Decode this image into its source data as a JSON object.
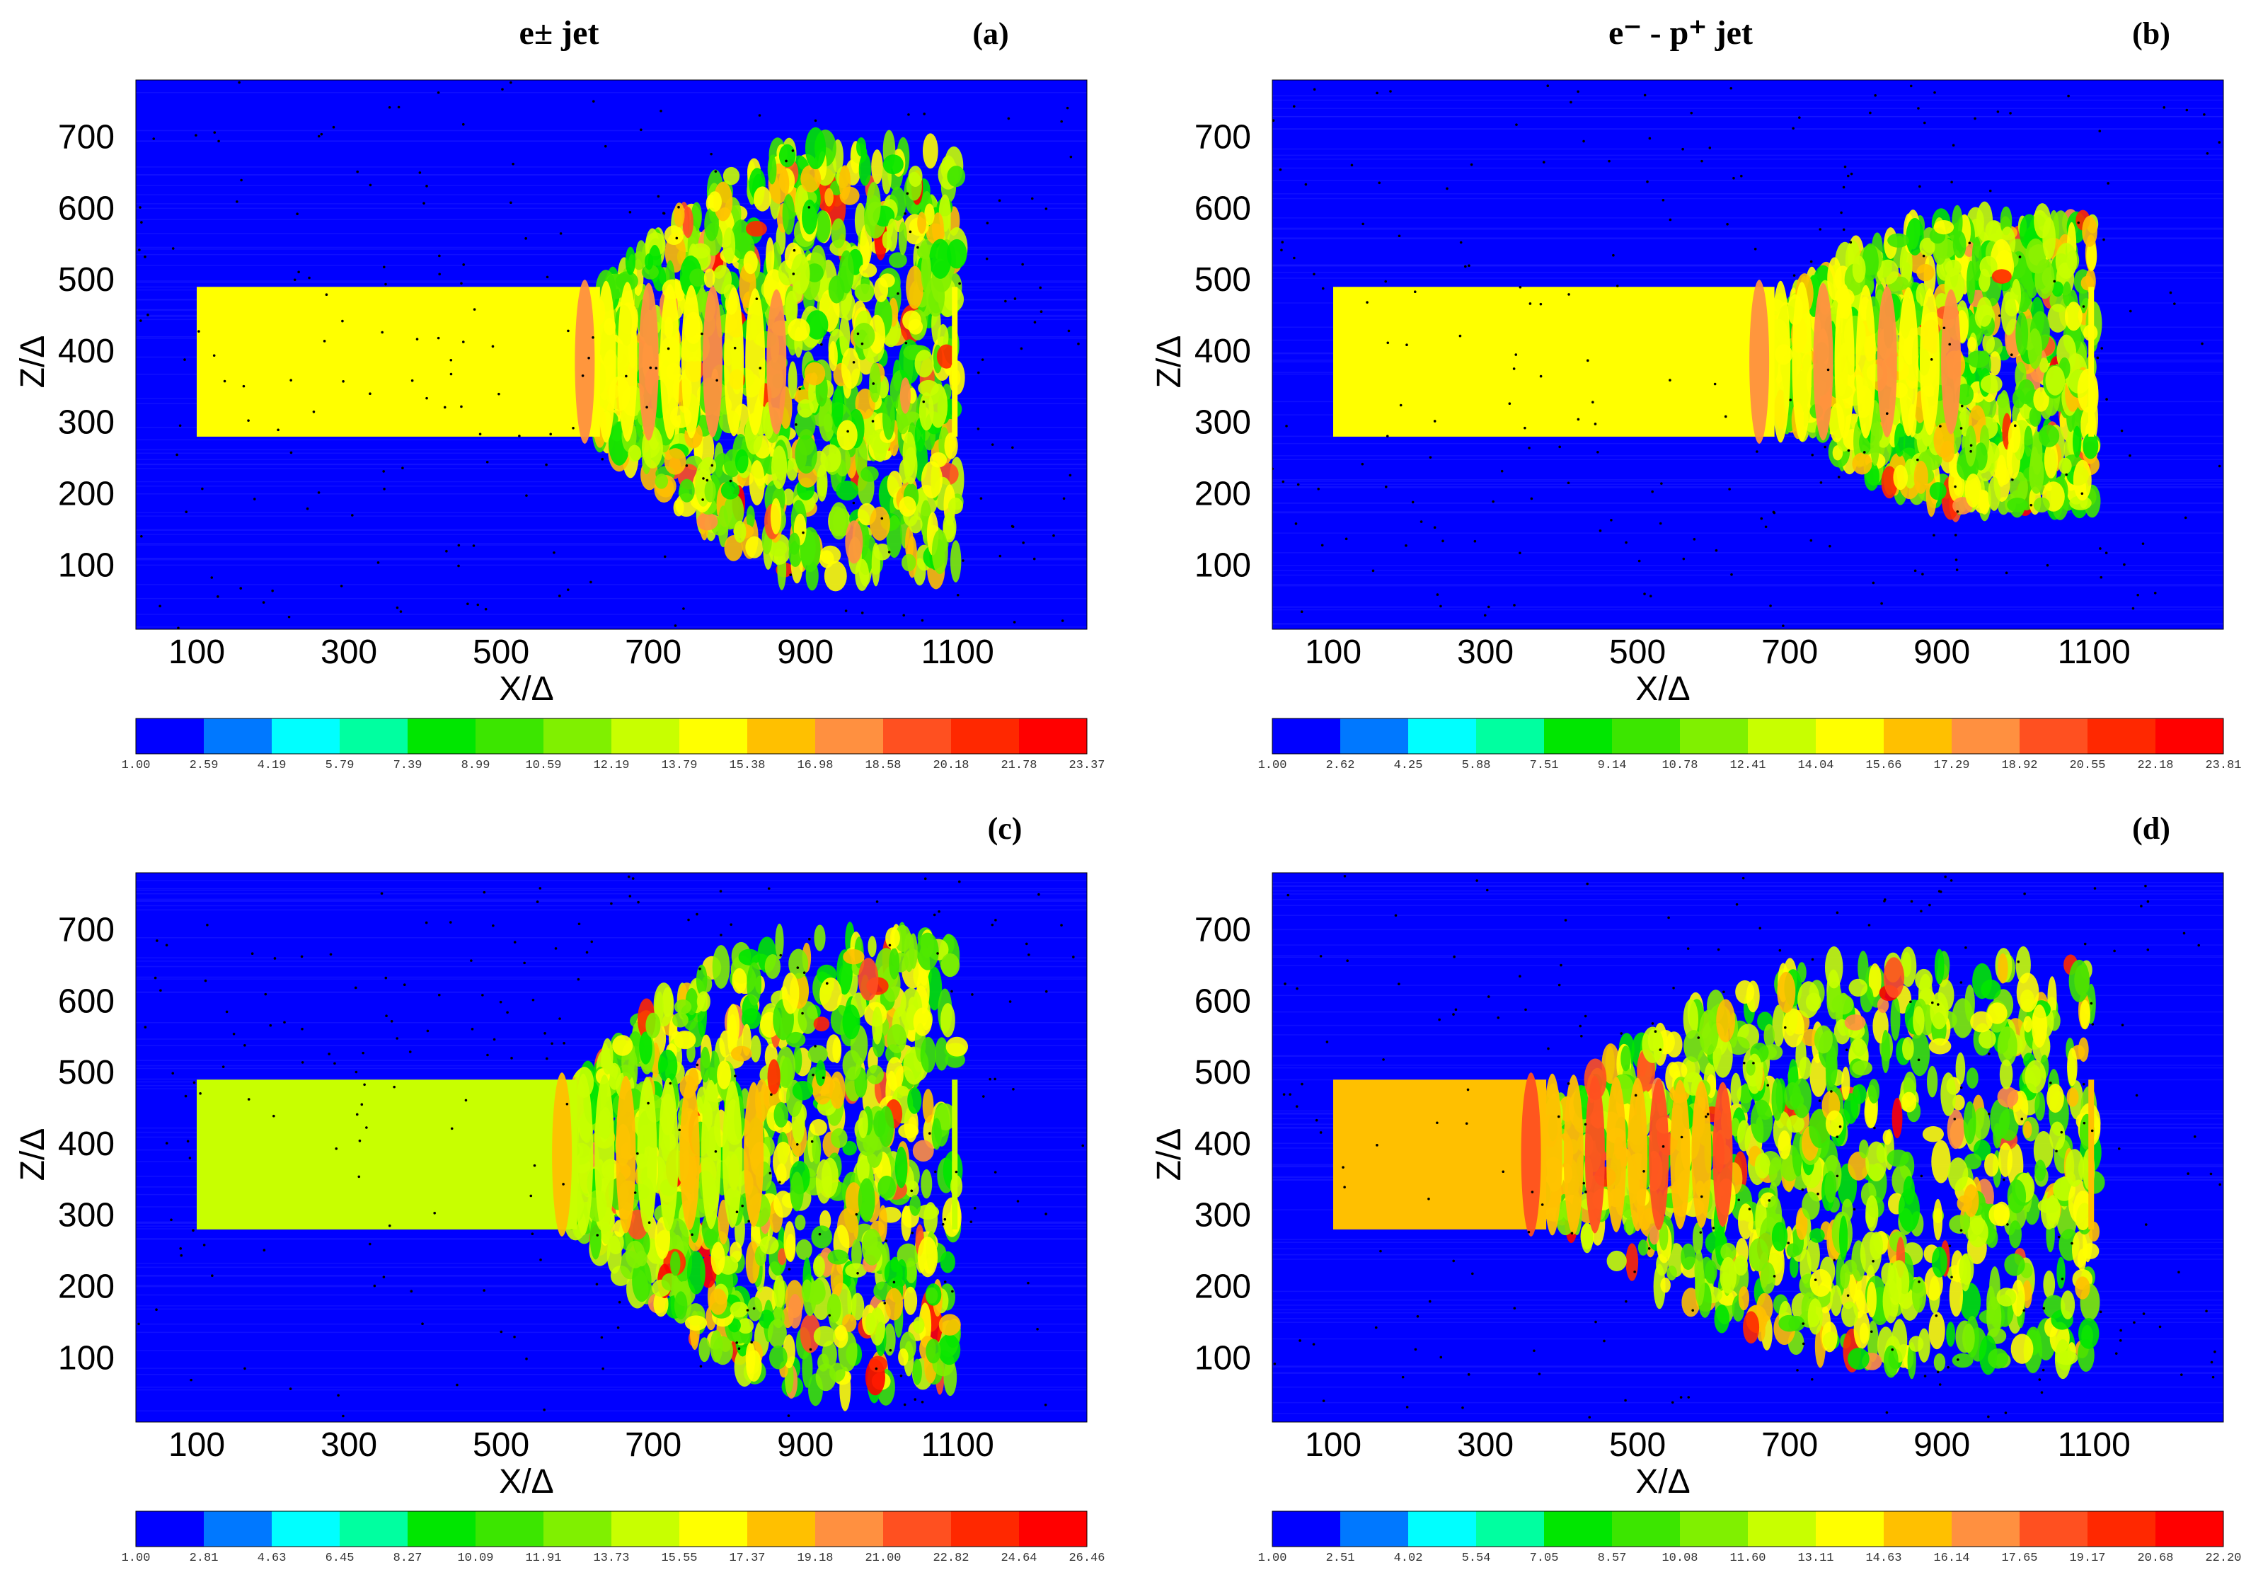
{
  "figure": {
    "colors": {
      "background": "#0000ff",
      "palette": [
        "#0000ff",
        "#0078ff",
        "#00ffff",
        "#00ffa0",
        "#00e600",
        "#3ce600",
        "#80f000",
        "#c8ff00",
        "#ffff00",
        "#ffc000",
        "#ff9040",
        "#ff5020",
        "#ff2800",
        "#ff0000"
      ]
    }
  },
  "chart_data": [
    {
      "type": "heatmap",
      "panel": "(a)",
      "title": "e± jet",
      "xlabel": "X/Δ",
      "ylabel": "Z/Δ",
      "xlim": [
        20,
        1270
      ],
      "ylim": [
        10,
        780
      ],
      "xticks": [
        100,
        300,
        500,
        700,
        900,
        1100
      ],
      "yticks": [
        100,
        200,
        300,
        400,
        500,
        600,
        700
      ],
      "jet": {
        "x_start": 100,
        "x_end": 1100,
        "z_low": 280,
        "z_high": 490,
        "core_level": 8,
        "spread_x": 850,
        "spread_z_low": 80,
        "spread_z_high": 690
      },
      "colorbar": {
        "ticks": [
          "1.00",
          "2.59",
          "4.19",
          "5.79",
          "7.39",
          "8.99",
          "10.59",
          "12.19",
          "13.79",
          "15.38",
          "16.98",
          "18.58",
          "20.18",
          "21.78",
          "23.37"
        ]
      }
    },
    {
      "type": "heatmap",
      "panel": "(b)",
      "title": "e⁻ - p⁺ jet",
      "xlabel": "X/Δ",
      "ylabel": "Z/Δ",
      "xlim": [
        20,
        1270
      ],
      "ylim": [
        10,
        780
      ],
      "xticks": [
        100,
        300,
        500,
        700,
        900,
        1100
      ],
      "yticks": [
        100,
        200,
        300,
        400,
        500,
        600,
        700
      ],
      "jet": {
        "x_start": 100,
        "x_end": 1100,
        "z_low": 280,
        "z_high": 490,
        "core_level": 8,
        "spread_x": 900,
        "spread_z_low": 180,
        "spread_z_high": 590
      },
      "colorbar": {
        "ticks": [
          "1.00",
          "2.62",
          "4.25",
          "5.88",
          "7.51",
          "9.14",
          "10.78",
          "12.41",
          "14.04",
          "15.66",
          "17.29",
          "18.92",
          "20.55",
          "22.18",
          "23.81"
        ]
      }
    },
    {
      "type": "heatmap",
      "panel": "(c)",
      "title": "",
      "xlabel": "X/Δ",
      "ylabel": "Z/Δ",
      "xlim": [
        20,
        1270
      ],
      "ylim": [
        10,
        780
      ],
      "xticks": [
        100,
        300,
        500,
        700,
        900,
        1100
      ],
      "yticks": [
        100,
        200,
        300,
        400,
        500,
        600,
        700
      ],
      "jet": {
        "x_start": 100,
        "x_end": 1100,
        "z_low": 280,
        "z_high": 490,
        "core_level": 7,
        "spread_x": 820,
        "spread_z_low": 50,
        "spread_z_high": 700
      },
      "colorbar": {
        "ticks": [
          "1.00",
          "2.81",
          "4.63",
          "6.45",
          "8.27",
          "10.09",
          "11.91",
          "13.73",
          "15.55",
          "17.37",
          "19.18",
          "21.00",
          "22.82",
          "24.64",
          "26.46"
        ]
      }
    },
    {
      "type": "heatmap",
      "panel": "(d)",
      "title": "",
      "xlabel": "X/Δ",
      "ylabel": "Z/Δ",
      "xlim": [
        20,
        1270
      ],
      "ylim": [
        10,
        780
      ],
      "xticks": [
        100,
        300,
        500,
        700,
        900,
        1100
      ],
      "yticks": [
        100,
        200,
        300,
        400,
        500,
        600,
        700
      ],
      "jet": {
        "x_start": 100,
        "x_end": 1100,
        "z_low": 280,
        "z_high": 490,
        "core_level": 9,
        "spread_x": 600,
        "spread_z_low": 90,
        "spread_z_high": 660
      },
      "colorbar": {
        "ticks": [
          "1.00",
          "2.51",
          "4.02",
          "5.54",
          "7.05",
          "8.57",
          "10.08",
          "11.60",
          "13.11",
          "14.63",
          "16.14",
          "17.65",
          "19.17",
          "20.68",
          "22.20"
        ]
      }
    }
  ]
}
